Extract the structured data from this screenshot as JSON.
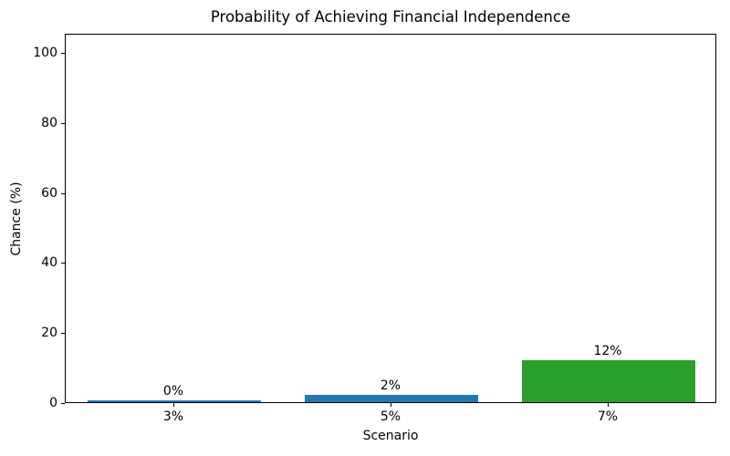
{
  "chart_data": {
    "type": "bar",
    "title": "Probability of Achieving Financial Independence",
    "xlabel": "Scenario",
    "ylabel": "Chance (%)",
    "categories": [
      "3%",
      "5%",
      "7%"
    ],
    "values": [
      0.5,
      2,
      12
    ],
    "data_labels": [
      "0%",
      "2%",
      "12%"
    ],
    "bar_colors": [
      "#1f77b4",
      "#1f77b4",
      "#2ca02c"
    ],
    "yticks": [
      0,
      20,
      40,
      60,
      80,
      100
    ],
    "ytick_labels": [
      "0",
      "20",
      "40",
      "60",
      "80",
      "100"
    ],
    "ylim": [
      0,
      105.5
    ],
    "grid": false,
    "legend_position": "none",
    "plot_background": "#ffffff",
    "spine_color": "#000000",
    "text_color": "#000000"
  }
}
